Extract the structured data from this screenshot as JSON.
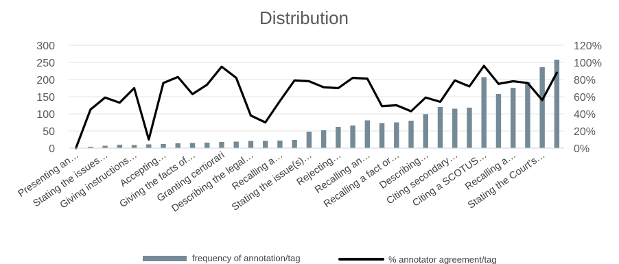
{
  "chart_data": {
    "type": "bar",
    "title": "Distribution",
    "xlabel": "",
    "ylabel": "",
    "y_left_lim": [
      0,
      300
    ],
    "y_left_ticks": [
      "0",
      "50",
      "100",
      "150",
      "200",
      "250",
      "300"
    ],
    "y_right_lim": [
      0,
      120
    ],
    "y_right_ticks": [
      "0%",
      "20%",
      "40%",
      "60%",
      "80%",
      "100%",
      "120%"
    ],
    "grid": true,
    "legend_position": "bottom",
    "categories": [
      "Presenting an…",
      "",
      "Stating the issues…",
      "",
      "Giving instructions…",
      "",
      "Accepting…",
      "",
      "Giving the facts of…",
      "",
      "Granting certiorari",
      "",
      "Describing the legal…",
      "",
      "Recalling a…",
      "",
      "Stating the issue(s)…",
      "",
      "Rejecting…",
      "",
      "Recalling an…",
      "",
      "Recalling a fact or…",
      "",
      "Describing…",
      "",
      "Citing secondary…",
      "",
      "Citing a SCOTUS…",
      "",
      "Recalling a…",
      "",
      "Stating the Court's…",
      ""
    ],
    "series": [
      {
        "name": "frequency of annotation/tag",
        "kind": "bar",
        "axis": "left",
        "color": "#758a97",
        "values": [
          1,
          4,
          7,
          10,
          9,
          11,
          12,
          14,
          15,
          16,
          18,
          19,
          21,
          21,
          22,
          24,
          48,
          52,
          62,
          66,
          81,
          73,
          75,
          80,
          99,
          120,
          115,
          118,
          207,
          158,
          176,
          192,
          236,
          258
        ]
      },
      {
        "name": "% annotator agreement/tag",
        "kind": "line",
        "axis": "right",
        "color": "#000000",
        "values": [
          0,
          45,
          59,
          53,
          70,
          10,
          76,
          83,
          63,
          74,
          95,
          82,
          38,
          30,
          55,
          79,
          78,
          71,
          70,
          82,
          81,
          49,
          50,
          43,
          59,
          54,
          79,
          72,
          96,
          75,
          78,
          76,
          56,
          88
        ]
      }
    ]
  }
}
